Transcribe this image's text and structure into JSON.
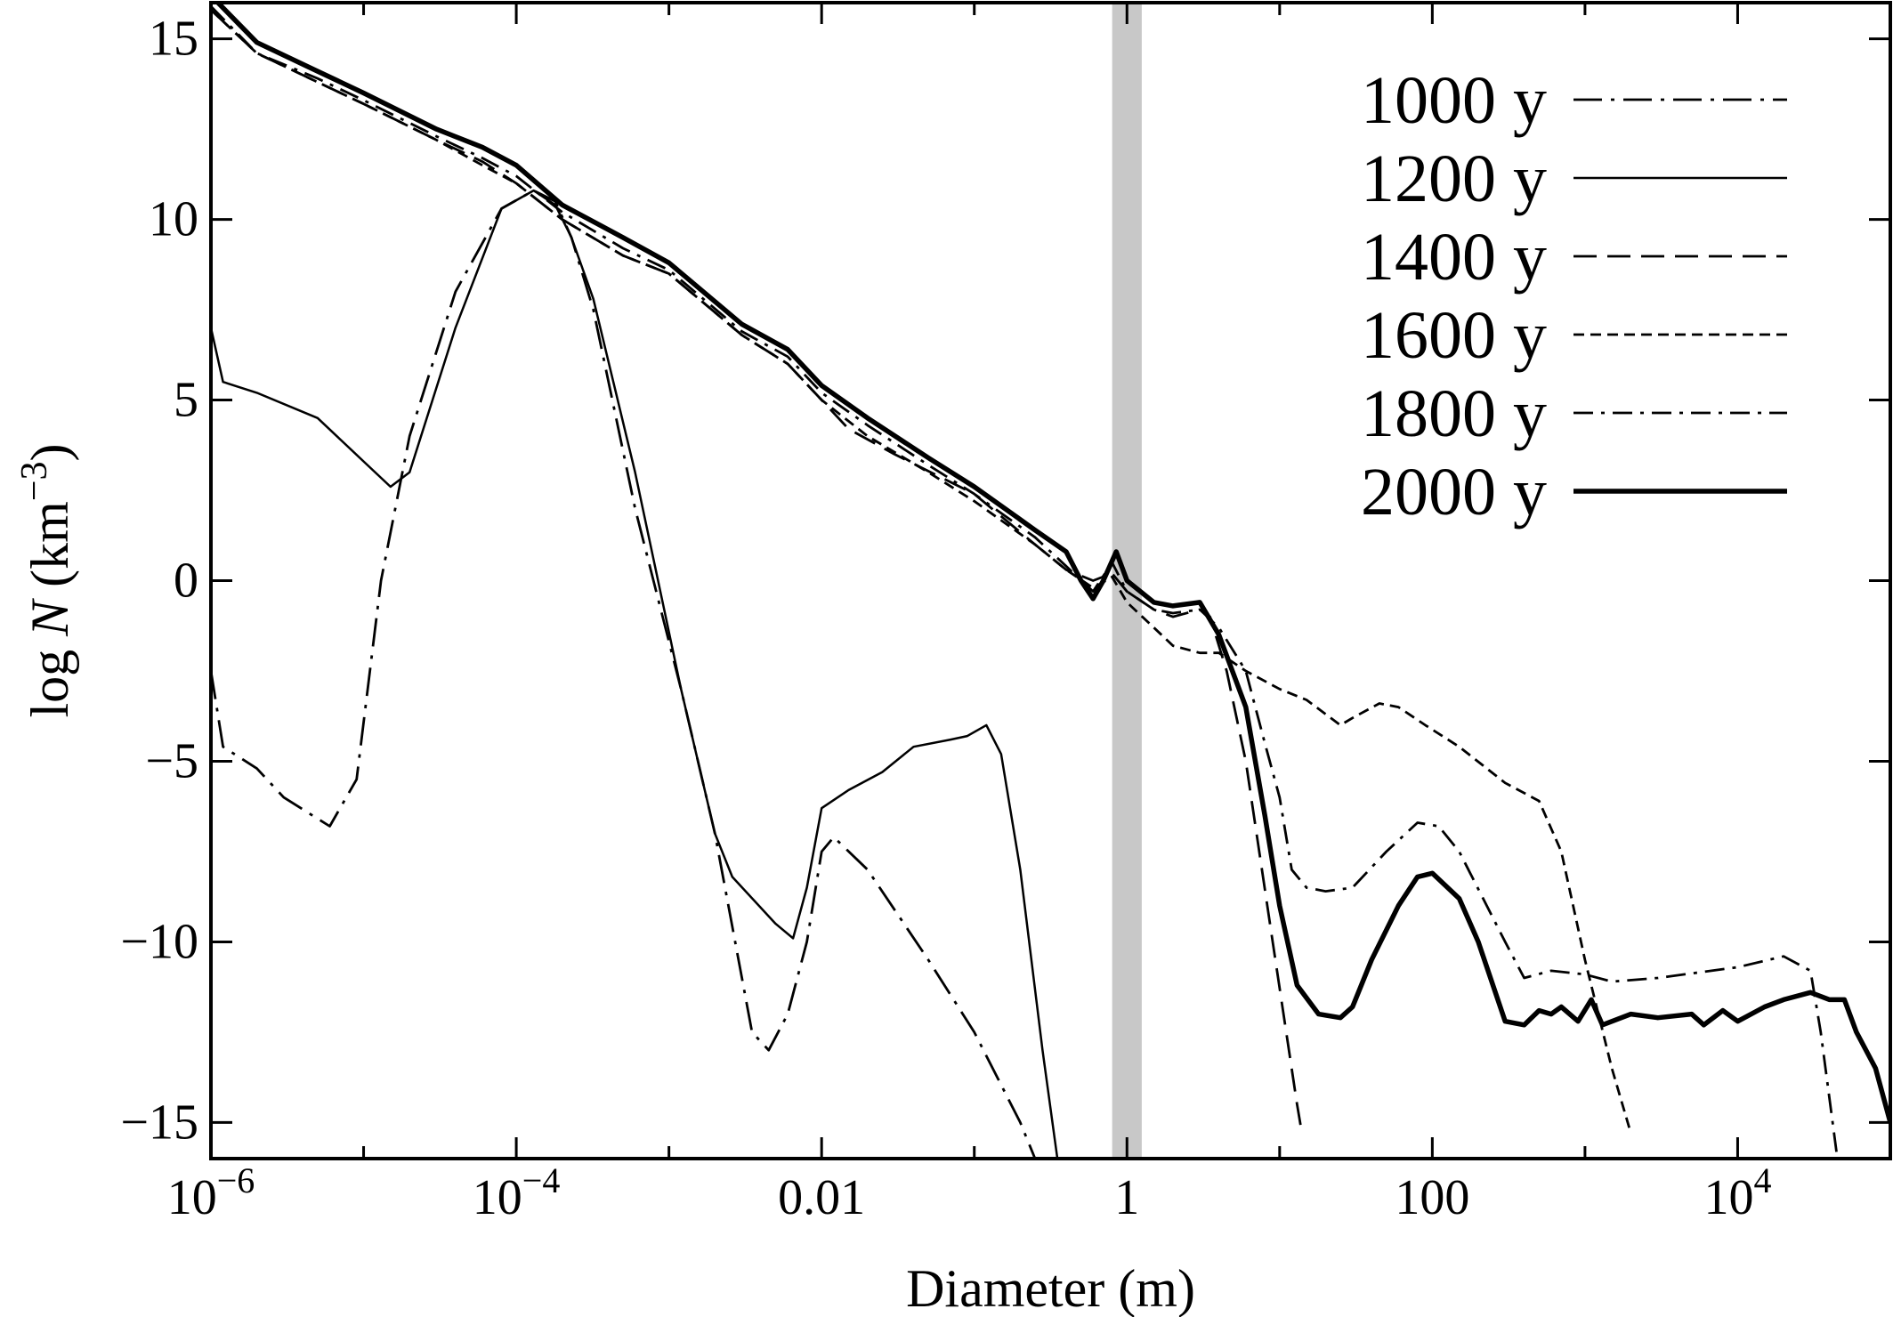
{
  "chart_data": {
    "type": "line",
    "xlabel": "Diameter (m)",
    "ylabel": {
      "prefix": "log ",
      "var": "N",
      "unit_open": " (km",
      "unit_exp": "−3",
      "unit_close": ")"
    },
    "x_scale": "log10",
    "xlim": [
      1e-06,
      100000.0
    ],
    "ylim": [
      -16,
      16
    ],
    "x_ticks": [
      {
        "value": 1e-06,
        "base": "10",
        "exp": "−6"
      },
      {
        "value": 0.0001,
        "base": "10",
        "exp": "−4"
      },
      {
        "value": 0.01,
        "label": "0.01"
      },
      {
        "value": 1,
        "label": "1"
      },
      {
        "value": 100,
        "label": "100"
      },
      {
        "value": 10000.0,
        "base": "10",
        "exp": "4"
      }
    ],
    "y_ticks": [
      {
        "value": 15,
        "label": "15"
      },
      {
        "value": 10,
        "label": "10"
      },
      {
        "value": 5,
        "label": "5"
      },
      {
        "value": 0,
        "label": "0"
      },
      {
        "value": -5,
        "label": "−5"
      },
      {
        "value": -10,
        "label": "−10"
      },
      {
        "value": -15,
        "label": "−15"
      }
    ],
    "shaded_band": {
      "x": [
        0.8,
        1.25
      ],
      "color": "#c8c8c8"
    },
    "legend_position": "top-right",
    "series": [
      {
        "name": "1000 y",
        "style": "dashdot-long",
        "points": [
          [
            1e-06,
            -2.5
          ],
          [
            1.2e-06,
            -4.6
          ],
          [
            2e-06,
            -5.2
          ],
          [
            3e-06,
            -6.0
          ],
          [
            6e-06,
            -6.8
          ],
          [
            9e-06,
            -5.5
          ],
          [
            1.3e-05,
            0.0
          ],
          [
            2e-05,
            4.0
          ],
          [
            4e-05,
            8.0
          ],
          [
            8e-05,
            10.3
          ],
          [
            0.00013,
            10.8
          ],
          [
            0.00018,
            10.5
          ],
          [
            0.00023,
            9.5
          ],
          [
            0.00032,
            7.5
          ],
          [
            0.0006,
            2.0
          ],
          [
            0.0012,
            -3.0
          ],
          [
            0.002,
            -7.0
          ],
          [
            0.0035,
            -12.5
          ],
          [
            0.0045,
            -13.0
          ],
          [
            0.006,
            -12.0
          ],
          [
            0.008,
            -10.0
          ],
          [
            0.01,
            -7.5
          ],
          [
            0.012,
            -7.1
          ],
          [
            0.02,
            -8.0
          ],
          [
            0.05,
            -10.5
          ],
          [
            0.1,
            -12.5
          ],
          [
            0.2,
            -15.0
          ],
          [
            0.25,
            -16.0
          ]
        ]
      },
      {
        "name": "1200 y",
        "style": "solid-thin",
        "points": [
          [
            1e-06,
            7.0
          ],
          [
            1.2e-06,
            5.5
          ],
          [
            2e-06,
            5.2
          ],
          [
            5e-06,
            4.5
          ],
          [
            1e-05,
            3.3
          ],
          [
            1.5e-05,
            2.6
          ],
          [
            2e-05,
            3.0
          ],
          [
            4e-05,
            7.0
          ],
          [
            8e-05,
            10.3
          ],
          [
            0.00013,
            10.8
          ],
          [
            0.00018,
            10.4
          ],
          [
            0.00023,
            9.5
          ],
          [
            0.00032,
            7.8
          ],
          [
            0.0006,
            3.0
          ],
          [
            0.0012,
            -3.0
          ],
          [
            0.002,
            -7.0
          ],
          [
            0.0026,
            -8.2
          ],
          [
            0.005,
            -9.5
          ],
          [
            0.0065,
            -9.9
          ],
          [
            0.008,
            -8.5
          ],
          [
            0.01,
            -6.3
          ],
          [
            0.015,
            -5.8
          ],
          [
            0.025,
            -5.3
          ],
          [
            0.04,
            -4.6
          ],
          [
            0.07,
            -4.4
          ],
          [
            0.09,
            -4.3
          ],
          [
            0.12,
            -4.0
          ],
          [
            0.15,
            -4.8
          ],
          [
            0.2,
            -8.0
          ],
          [
            0.28,
            -13.0
          ],
          [
            0.35,
            -16.0
          ]
        ]
      },
      {
        "name": "1400 y",
        "style": "dashed-long",
        "points": [
          [
            1e-06,
            15.8
          ],
          [
            2e-06,
            14.6
          ],
          [
            5e-06,
            13.8
          ],
          [
            1e-05,
            13.2
          ],
          [
            3e-05,
            12.2
          ],
          [
            6e-05,
            11.6
          ],
          [
            0.0001,
            11.0
          ],
          [
            0.0002,
            10.0
          ],
          [
            0.0005,
            9.0
          ],
          [
            0.001,
            8.5
          ],
          [
            0.003,
            6.8
          ],
          [
            0.006,
            6.0
          ],
          [
            0.01,
            5.0
          ],
          [
            0.015,
            4.2
          ],
          [
            0.03,
            3.5
          ],
          [
            0.1,
            2.4
          ],
          [
            0.25,
            1.0
          ],
          [
            0.4,
            0.3
          ],
          [
            0.6,
            0.0
          ],
          [
            0.8,
            0.2
          ],
          [
            1.0,
            -0.3
          ],
          [
            1.5,
            -0.8
          ],
          [
            2,
            -1.0
          ],
          [
            3,
            -0.8
          ],
          [
            3.5,
            -1.0
          ],
          [
            4.5,
            -2.5
          ],
          [
            6,
            -5.0
          ],
          [
            9,
            -10.0
          ],
          [
            13,
            -14.5
          ],
          [
            14,
            -15.3
          ]
        ]
      },
      {
        "name": "1600 y",
        "style": "dashed-short",
        "points": [
          [
            1e-06,
            15.8
          ],
          [
            2e-06,
            14.6
          ],
          [
            5e-06,
            13.8
          ],
          [
            1e-05,
            13.2
          ],
          [
            3e-05,
            12.2
          ],
          [
            6e-05,
            11.5
          ],
          [
            0.0001,
            11.0
          ],
          [
            0.0002,
            10.0
          ],
          [
            0.0005,
            9.0
          ],
          [
            0.001,
            8.5
          ],
          [
            0.003,
            6.8
          ],
          [
            0.006,
            6.0
          ],
          [
            0.01,
            5.0
          ],
          [
            0.02,
            4.0
          ],
          [
            0.05,
            3.0
          ],
          [
            0.1,
            2.2
          ],
          [
            0.25,
            1.0
          ],
          [
            0.4,
            0.3
          ],
          [
            0.6,
            -0.2
          ],
          [
            0.8,
            0.1
          ],
          [
            1.0,
            -0.6
          ],
          [
            1.5,
            -1.3
          ],
          [
            2,
            -1.8
          ],
          [
            3,
            -2.0
          ],
          [
            4,
            -2.0
          ],
          [
            6,
            -2.5
          ],
          [
            10,
            -3.0
          ],
          [
            15,
            -3.3
          ],
          [
            25,
            -4.0
          ],
          [
            30,
            -3.8
          ],
          [
            45,
            -3.4
          ],
          [
            60,
            -3.5
          ],
          [
            90,
            -4.0
          ],
          [
            150,
            -4.6
          ],
          [
            300,
            -5.6
          ],
          [
            500,
            -6.1
          ],
          [
            700,
            -7.5
          ],
          [
            1000,
            -10.5
          ],
          [
            1500,
            -13.5
          ],
          [
            2000,
            -15.3
          ]
        ]
      },
      {
        "name": "1800 y",
        "style": "dashdot",
        "points": [
          [
            1e-06,
            15.9
          ],
          [
            2e-06,
            14.6
          ],
          [
            5e-06,
            13.9
          ],
          [
            1e-05,
            13.3
          ],
          [
            3e-05,
            12.3
          ],
          [
            6e-05,
            11.7
          ],
          [
            0.0001,
            11.2
          ],
          [
            0.0002,
            10.2
          ],
          [
            0.0005,
            9.2
          ],
          [
            0.001,
            8.6
          ],
          [
            0.003,
            6.9
          ],
          [
            0.006,
            6.2
          ],
          [
            0.01,
            5.2
          ],
          [
            0.02,
            4.3
          ],
          [
            0.05,
            3.2
          ],
          [
            0.1,
            2.4
          ],
          [
            0.25,
            1.2
          ],
          [
            0.4,
            0.4
          ],
          [
            0.6,
            -0.3
          ],
          [
            0.8,
            0.5
          ],
          [
            1.0,
            -0.3
          ],
          [
            1.5,
            -0.8
          ],
          [
            2,
            -0.9
          ],
          [
            3,
            -0.8
          ],
          [
            4,
            -1.3
          ],
          [
            6,
            -2.5
          ],
          [
            8,
            -4.5
          ],
          [
            10,
            -6.0
          ],
          [
            12,
            -8.0
          ],
          [
            15,
            -8.5
          ],
          [
            20,
            -8.6
          ],
          [
            30,
            -8.5
          ],
          [
            50,
            -7.5
          ],
          [
            80,
            -6.7
          ],
          [
            110,
            -6.8
          ],
          [
            150,
            -7.5
          ],
          [
            300,
            -10.0
          ],
          [
            400,
            -11.0
          ],
          [
            600,
            -10.8
          ],
          [
            1000,
            -10.9
          ],
          [
            1500,
            -11.1
          ],
          [
            3000,
            -11.0
          ],
          [
            10000,
            -10.7
          ],
          [
            20000,
            -10.4
          ],
          [
            30000,
            -10.8
          ],
          [
            35000,
            -12.5
          ],
          [
            45000,
            -16.0
          ]
        ]
      },
      {
        "name": "2000 y",
        "style": "solid-thick",
        "points": [
          [
            1e-06,
            16.2
          ],
          [
            2e-06,
            14.9
          ],
          [
            5e-06,
            14.1
          ],
          [
            1e-05,
            13.5
          ],
          [
            3e-05,
            12.5
          ],
          [
            6e-05,
            12.0
          ],
          [
            0.0001,
            11.5
          ],
          [
            0.0002,
            10.4
          ],
          [
            0.0005,
            9.5
          ],
          [
            0.001,
            8.8
          ],
          [
            0.003,
            7.1
          ],
          [
            0.006,
            6.4
          ],
          [
            0.01,
            5.4
          ],
          [
            0.02,
            4.5
          ],
          [
            0.05,
            3.4
          ],
          [
            0.1,
            2.6
          ],
          [
            0.25,
            1.4
          ],
          [
            0.4,
            0.8
          ],
          [
            0.5,
            0.0
          ],
          [
            0.6,
            -0.5
          ],
          [
            0.7,
            0.0
          ],
          [
            0.85,
            0.8
          ],
          [
            1.0,
            0.0
          ],
          [
            1.5,
            -0.6
          ],
          [
            2,
            -0.7
          ],
          [
            3,
            -0.6
          ],
          [
            4,
            -1.5
          ],
          [
            6,
            -3.5
          ],
          [
            8,
            -6.5
          ],
          [
            10,
            -9.0
          ],
          [
            13,
            -11.2
          ],
          [
            18,
            -12.0
          ],
          [
            25,
            -12.1
          ],
          [
            30,
            -11.8
          ],
          [
            40,
            -10.5
          ],
          [
            60,
            -9.0
          ],
          [
            80,
            -8.2
          ],
          [
            100,
            -8.1
          ],
          [
            150,
            -8.8
          ],
          [
            200,
            -10.0
          ],
          [
            300,
            -12.2
          ],
          [
            400,
            -12.3
          ],
          [
            500,
            -11.9
          ],
          [
            600,
            -12.0
          ],
          [
            700,
            -11.8
          ],
          [
            900,
            -12.2
          ],
          [
            1100,
            -11.6
          ],
          [
            1300,
            -12.3
          ],
          [
            2000,
            -12.0
          ],
          [
            3000,
            -12.1
          ],
          [
            5000,
            -12.0
          ],
          [
            6000,
            -12.3
          ],
          [
            8000,
            -11.9
          ],
          [
            10000,
            -12.2
          ],
          [
            15000,
            -11.8
          ],
          [
            20000,
            -11.6
          ],
          [
            30000,
            -11.4
          ],
          [
            40000,
            -11.6
          ],
          [
            50000,
            -11.6
          ],
          [
            60000,
            -12.5
          ],
          [
            80000,
            -13.5
          ],
          [
            100000,
            -15.0
          ]
        ]
      }
    ]
  }
}
